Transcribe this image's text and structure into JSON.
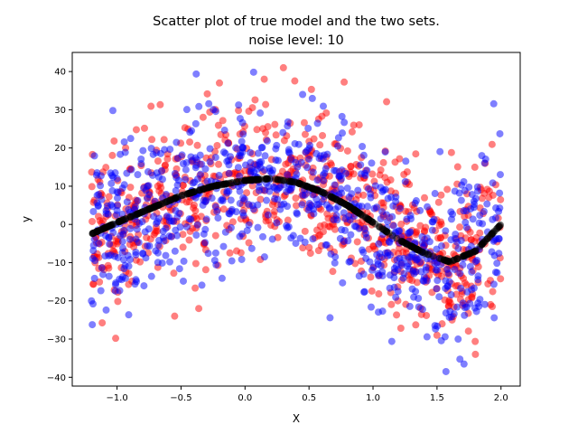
{
  "chart_data": {
    "type": "scatter",
    "title_line1": "Scatter plot of  true model and the two sets.",
    "title_line2": "noise level: 10",
    "xlabel": "X",
    "ylabel": "y",
    "xlim": [
      -1.35,
      2.15
    ],
    "ylim": [
      -42.3,
      45.0
    ],
    "xticks": [
      -1.0,
      -0.5,
      0.0,
      0.5,
      1.0,
      1.5,
      2.0
    ],
    "xtick_labels": [
      "−1.0",
      "−0.5",
      "0.0",
      "0.5",
      "1.0",
      "1.5",
      "2.0"
    ],
    "yticks": [
      -40,
      -30,
      -20,
      -10,
      0,
      10,
      20,
      30,
      40
    ],
    "ytick_labels": [
      "−40",
      "−30",
      "−20",
      "−10",
      "0",
      "10",
      "20",
      "30",
      "40"
    ],
    "grid": false,
    "series": [
      {
        "color": "#ff0000",
        "marker": "circle",
        "x_range": [
          -1.2,
          2.0
        ],
        "count": 800,
        "noise_sd": 10,
        "seed": 12345,
        "notable_points": [
          [
            0.3,
            41
          ],
          [
            -0.2,
            37
          ],
          [
            0.15,
            38
          ],
          [
            1.5,
            -29
          ],
          [
            1.8,
            -34
          ],
          [
            -0.55,
            -24
          ]
        ]
      },
      {
        "color": "#0000ff",
        "marker": "circle",
        "x_range": [
          -1.2,
          2.0
        ],
        "count": 800,
        "noise_sd": 10,
        "seed": 67890,
        "notable_points": [
          [
            0.45,
            34
          ],
          [
            1.57,
            -38.5
          ],
          [
            1.85,
            18
          ],
          [
            -1.2,
            -20
          ]
        ]
      },
      {
        "color": "#000000",
        "marker": "circle",
        "x_range": [
          -1.2,
          2.0
        ],
        "count": 400,
        "noise_sd": 0,
        "seed": 1
      }
    ],
    "true_model_samples": {
      "x": [
        -1.2,
        -1.0,
        -0.75,
        -0.5,
        -0.25,
        0.0,
        0.2,
        0.4,
        0.6,
        0.8,
        1.0,
        1.2,
        1.4,
        1.6,
        1.8,
        2.0
      ],
      "y": [
        -2.5,
        0.5,
        4,
        7.5,
        10,
        11.5,
        12,
        11,
        8.5,
        5,
        0.5,
        -4,
        -7.5,
        -9.8,
        -7,
        0
      ]
    }
  }
}
